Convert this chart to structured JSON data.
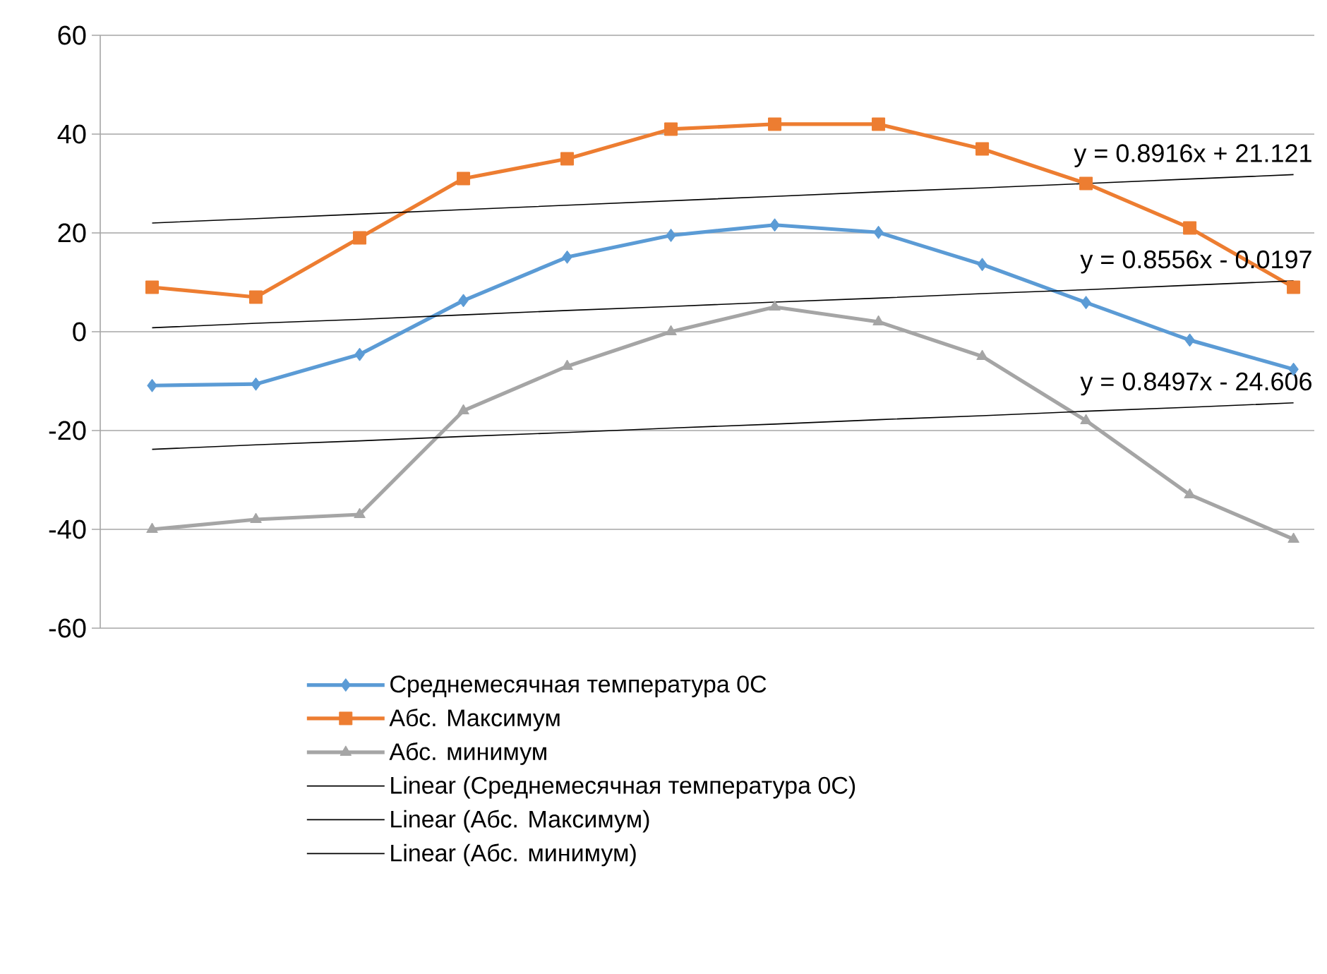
{
  "chart_data": {
    "type": "line",
    "categories": [
      null,
      null,
      null,
      null,
      null,
      null,
      null,
      null,
      null,
      null,
      null,
      null
    ],
    "series": [
      {
        "name": "Среднемесячная температура 0С",
        "color": "#5b9bd5",
        "marker": "diamond",
        "values": [
          -10.9,
          -10.6,
          -4.6,
          6.3,
          15.1,
          19.5,
          21.6,
          20.1,
          13.6,
          5.9,
          -1.7,
          -7.6
        ]
      },
      {
        "name": "Абс. Максимум",
        "color": "#ed7d31",
        "marker": "square",
        "values": [
          9,
          7,
          19,
          31,
          35,
          41,
          42,
          42,
          37,
          30,
          21,
          9
        ]
      },
      {
        "name": "Абс. минимум",
        "color": "#a5a5a5",
        "marker": "triangle",
        "values": [
          -40,
          -38,
          -37,
          -16,
          -7,
          0,
          5,
          2,
          -5,
          -18,
          -33,
          -42
        ]
      },
      {
        "name": "Linear (Среднемесячная температура 0С)",
        "color": "#000000",
        "marker": "none",
        "values": [
          0.8,
          1.7,
          2.5,
          3.4,
          4.3,
          5.1,
          6.0,
          6.8,
          7.7,
          8.5,
          9.4,
          10.3
        ]
      },
      {
        "name": "Linear (Абс. Максимум)",
        "color": "#000000",
        "marker": "none",
        "values": [
          22.0,
          22.9,
          23.8,
          24.7,
          25.6,
          26.5,
          27.4,
          28.3,
          29.1,
          30.0,
          30.9,
          31.8
        ]
      },
      {
        "name": "Linear (Абс. минимум)",
        "color": "#000000",
        "marker": "none",
        "values": [
          -23.8,
          -22.9,
          -22.1,
          -21.2,
          -20.4,
          -19.5,
          -18.7,
          -17.8,
          -17.0,
          -16.1,
          -15.3,
          -14.4
        ]
      }
    ],
    "annotations": [
      {
        "text": "y = 0.8916x + 21.121",
        "y": 31.8
      },
      {
        "text": "y = 0.8556x - 0.0197",
        "y": 10.3
      },
      {
        "text": "y = 0.8497x - 24.606",
        "y": -14.4
      }
    ],
    "ylim": [
      -60,
      60
    ],
    "yticks": [
      -60,
      -40,
      -20,
      0,
      20,
      40,
      60
    ],
    "grid": "y",
    "legend": "bottom",
    "tick_labels": "y"
  }
}
